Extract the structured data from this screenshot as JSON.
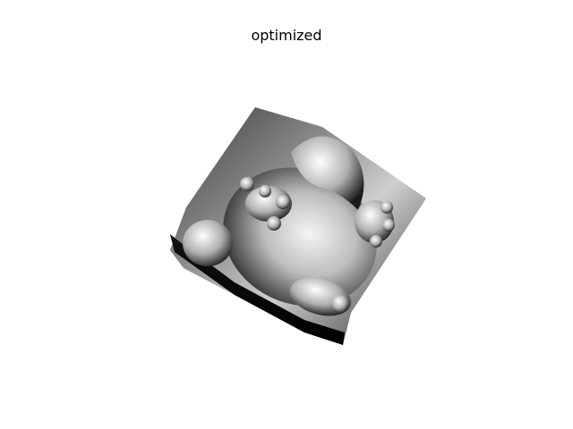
{
  "figure": {
    "title": "optimized"
  },
  "image": {
    "subject": "shaded-surface-render",
    "colormap": "grayscale"
  }
}
